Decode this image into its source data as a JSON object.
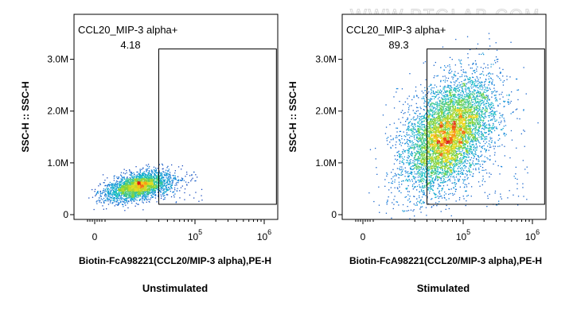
{
  "watermark": "WWW.PTGLAB.COM",
  "chart_data": [
    {
      "type": "scatter",
      "subtype": "flow-cytometry-density-dot-plot",
      "caption": "Unstimulated",
      "xlabel": "Biotin-FcA98221(CCL20/MIP-3 alpha),PE-H",
      "ylabel": "SSC-H :: SSC-H",
      "x_scale": "biexponential",
      "x_ticks": [
        {
          "base": "0",
          "exp": ""
        },
        {
          "base": "10",
          "exp": "5"
        },
        {
          "base": "10",
          "exp": "6"
        }
      ],
      "y_ticks": [
        "0",
        "1.0M",
        "2.0M",
        "3.0M"
      ],
      "ylim": [
        0,
        3900000
      ],
      "gate": {
        "name": "CCL20_MIP-3 alpha+",
        "percent": "4.18",
        "x_range": [
          30000,
          1500000
        ],
        "y_range": [
          200000,
          3200000
        ]
      },
      "population": {
        "center_x": 15000,
        "center_y": 550000,
        "events": 2600
      }
    },
    {
      "type": "scatter",
      "subtype": "flow-cytometry-density-dot-plot",
      "caption": "Stimulated",
      "xlabel": "Biotin-FcA98221(CCL20/MIP-3 alpha),PE-H",
      "ylabel": "SSC-H :: SSC-H",
      "x_scale": "biexponential",
      "x_ticks": [
        {
          "base": "0",
          "exp": ""
        },
        {
          "base": "10",
          "exp": "5"
        },
        {
          "base": "10",
          "exp": "6"
        }
      ],
      "y_ticks": [
        "0",
        "1.0M",
        "2.0M",
        "3.0M"
      ],
      "ylim": [
        0,
        3900000
      ],
      "gate": {
        "name": "CCL20_MIP-3 alpha+",
        "percent": "89.3",
        "x_range": [
          30000,
          1500000
        ],
        "y_range": [
          200000,
          3200000
        ]
      },
      "population": {
        "center_x": 60000,
        "center_y": 1550000,
        "events": 6000
      }
    }
  ]
}
